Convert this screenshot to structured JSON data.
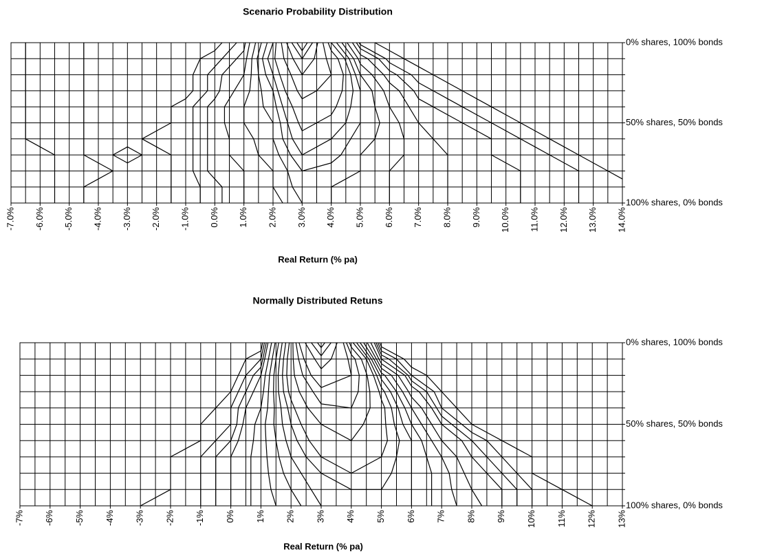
{
  "chart_data": [
    {
      "type": "contour",
      "title": "Scenario Probability Distribution",
      "x_label": "Real Return (% pa)",
      "xlim": [
        -7,
        14
      ],
      "xticks": [
        {
          "value": -7,
          "label": "-7.0%"
        },
        {
          "value": -6,
          "label": "-6.0%"
        },
        {
          "value": -5,
          "label": "-5.0%"
        },
        {
          "value": -4,
          "label": "-4.0%"
        },
        {
          "value": -3,
          "label": "-3.0%"
        },
        {
          "value": -2,
          "label": "-2.0%"
        },
        {
          "value": -1,
          "label": "-1.0%"
        },
        {
          "value": 0,
          "label": "0.0%"
        },
        {
          "value": 1,
          "label": "1.0%"
        },
        {
          "value": 2,
          "label": "2.0%"
        },
        {
          "value": 3,
          "label": "3.0%"
        },
        {
          "value": 4,
          "label": "4.0%"
        },
        {
          "value": 5,
          "label": "5.0%"
        },
        {
          "value": 6,
          "label": "6.0%"
        },
        {
          "value": 7,
          "label": "7.0%"
        },
        {
          "value": 8,
          "label": "8.0%"
        },
        {
          "value": 9,
          "label": "9.0%"
        },
        {
          "value": 10,
          "label": "10.0%"
        },
        {
          "value": 11,
          "label": "11.0%"
        },
        {
          "value": 12,
          "label": "12.0%"
        },
        {
          "value": 13,
          "label": "13.0%"
        },
        {
          "value": 14,
          "label": "14.0%"
        }
      ],
      "xgrid_step": 0.5,
      "categories": [
        "0% shares, 100% bonds",
        null,
        null,
        null,
        null,
        "50% shares, 50% bonds",
        null,
        null,
        null,
        null,
        "100% shares, 0% bonds"
      ],
      "x": [
        -7,
        -6,
        -5,
        -4,
        -3,
        -2,
        -1,
        0,
        1,
        2,
        3,
        4,
        5,
        6,
        7,
        8,
        9,
        10,
        11,
        12,
        13,
        14
      ],
      "z": [
        [
          0,
          1,
          1,
          0,
          0,
          0,
          0,
          0,
          2,
          12,
          40,
          12,
          1,
          0,
          0,
          0,
          0,
          0,
          0,
          0,
          0,
          0
        ],
        [
          0,
          1,
          1,
          0,
          0,
          0,
          0,
          1,
          3,
          14,
          30,
          18,
          5,
          1,
          0,
          0,
          0,
          0,
          0,
          0,
          0,
          0
        ],
        [
          0,
          1,
          1,
          0,
          0,
          0,
          0,
          2,
          4,
          12,
          25,
          20,
          8,
          3,
          1,
          0,
          0,
          0,
          0,
          0,
          0,
          0
        ],
        [
          0,
          1,
          1,
          0,
          0,
          0,
          0,
          2,
          5,
          10,
          22,
          18,
          10,
          5,
          2,
          1,
          0,
          0,
          0,
          0,
          0,
          0
        ],
        [
          0,
          1,
          1,
          0,
          0,
          0,
          1,
          3,
          6,
          9,
          18,
          16,
          10,
          6,
          3,
          2,
          1,
          0,
          0,
          0,
          0,
          0
        ],
        [
          0,
          1,
          1,
          0,
          0,
          0,
          1,
          3,
          6,
          8,
          16,
          14,
          10,
          7,
          4,
          3,
          2,
          1,
          0,
          0,
          0,
          0
        ],
        [
          0,
          1,
          1,
          0,
          0,
          1,
          1,
          3,
          5,
          8,
          14,
          12,
          9,
          7,
          5,
          3,
          3,
          2,
          1,
          0,
          0,
          0
        ],
        [
          0,
          0,
          1,
          0,
          1,
          0,
          1,
          3,
          5,
          7,
          12,
          11,
          8,
          7,
          5,
          4,
          3,
          2,
          2,
          1,
          0,
          0
        ],
        [
          0,
          0,
          1,
          1,
          0,
          0,
          1,
          3,
          4,
          6,
          10,
          9,
          8,
          6,
          5,
          4,
          3,
          3,
          2,
          2,
          1,
          0
        ],
        [
          0,
          0,
          1,
          0,
          0,
          0,
          1,
          2,
          4,
          6,
          9,
          8,
          7,
          6,
          5,
          4,
          3,
          3,
          2,
          2,
          1,
          1
        ],
        [
          0,
          0,
          1,
          0,
          0,
          0,
          1,
          2,
          4,
          5,
          8,
          8,
          7,
          6,
          5,
          4,
          3,
          3,
          2,
          2,
          1,
          1
        ]
      ],
      "levels": [
        0.5,
        1.5,
        2.5,
        4,
        6,
        8,
        10,
        12,
        15,
        20,
        25,
        30,
        35
      ],
      "grid": true,
      "color": "#000000"
    },
    {
      "type": "contour",
      "title": "Normally Distributed Retuns",
      "x_label": "Real Return (% pa)",
      "xlim": [
        -7,
        13
      ],
      "xticks": [
        {
          "value": -7,
          "label": "-7%"
        },
        {
          "value": -6,
          "label": "-6%"
        },
        {
          "value": -5,
          "label": "-5%"
        },
        {
          "value": -4,
          "label": "-4%"
        },
        {
          "value": -3,
          "label": "-3%"
        },
        {
          "value": -2,
          "label": "-2%"
        },
        {
          "value": -1,
          "label": "-1%"
        },
        {
          "value": 0,
          "label": "0%"
        },
        {
          "value": 1,
          "label": "1%"
        },
        {
          "value": 2,
          "label": "2%"
        },
        {
          "value": 3,
          "label": "3%"
        },
        {
          "value": 4,
          "label": "4%"
        },
        {
          "value": 5,
          "label": "5%"
        },
        {
          "value": 6,
          "label": "6%"
        },
        {
          "value": 7,
          "label": "7%"
        },
        {
          "value": 8,
          "label": "8%"
        },
        {
          "value": 9,
          "label": "9%"
        },
        {
          "value": 10,
          "label": "10%"
        },
        {
          "value": 11,
          "label": "11%"
        },
        {
          "value": 12,
          "label": "12%"
        },
        {
          "value": 13,
          "label": "13%"
        }
      ],
      "xgrid_step": 0.5,
      "categories": [
        "0% shares, 100% bonds",
        null,
        null,
        null,
        null,
        "50% shares, 50% bonds",
        null,
        null,
        null,
        null,
        "100% shares, 0% bonds"
      ],
      "x": [
        -7,
        -6,
        -5,
        -4,
        -3,
        -2,
        -1,
        0,
        1,
        2,
        3,
        4,
        5,
        6,
        7,
        8,
        9,
        10,
        11,
        12,
        13
      ],
      "z": [
        [
          0,
          0,
          0,
          0,
          0,
          0,
          0,
          0,
          0,
          17,
          66,
          17,
          0,
          0,
          0,
          0,
          0,
          0,
          0,
          0,
          0
        ],
        [
          0,
          0,
          0,
          0,
          0,
          0,
          0,
          0,
          2,
          18,
          46,
          28,
          4,
          0,
          0,
          0,
          0,
          0,
          0,
          0,
          0
        ],
        [
          0,
          0,
          0,
          0,
          0,
          0,
          0,
          0,
          4,
          18,
          36,
          30,
          11,
          2,
          0,
          0,
          0,
          0,
          0,
          0,
          0
        ],
        [
          0,
          0,
          0,
          0,
          0,
          0,
          0,
          1,
          5,
          17,
          28,
          28,
          15,
          5,
          1,
          0,
          0,
          0,
          0,
          0,
          0
        ],
        [
          0,
          0,
          0,
          0,
          0,
          0,
          0,
          2,
          6,
          15,
          24,
          25,
          17,
          8,
          2,
          0,
          0,
          0,
          0,
          0,
          0
        ],
        [
          0,
          0,
          0,
          0,
          0,
          0,
          1,
          2,
          7,
          14,
          20,
          22,
          17,
          10,
          4,
          1,
          0,
          0,
          0,
          0,
          0
        ],
        [
          0,
          0,
          0,
          0,
          0,
          0,
          1,
          3,
          7,
          13,
          18,
          20,
          17,
          12,
          6,
          3,
          1,
          0,
          0,
          0,
          0
        ],
        [
          0,
          0,
          0,
          0,
          0,
          1,
          2,
          4,
          7,
          12,
          16,
          17,
          16,
          12,
          8,
          4,
          2,
          1,
          0,
          0,
          0
        ],
        [
          0,
          0,
          0,
          0,
          0,
          1,
          2,
          4,
          7,
          11,
          14,
          16,
          15,
          12,
          9,
          5,
          3,
          1,
          0,
          0,
          0
        ],
        [
          0,
          0,
          0,
          0,
          0,
          1,
          2,
          4,
          7,
          10,
          13,
          14,
          14,
          12,
          9,
          6,
          4,
          2,
          1,
          0,
          0
        ],
        [
          0,
          0,
          0,
          0,
          1,
          1,
          2,
          4,
          7,
          9,
          12,
          13,
          13,
          12,
          9,
          7,
          4,
          2,
          1,
          1,
          0
        ]
      ],
      "levels": [
        1,
        2,
        3,
        4,
        6,
        8,
        10,
        12,
        14,
        16,
        20,
        25,
        30,
        40,
        50,
        60
      ],
      "grid": true,
      "color": "#000000"
    }
  ]
}
